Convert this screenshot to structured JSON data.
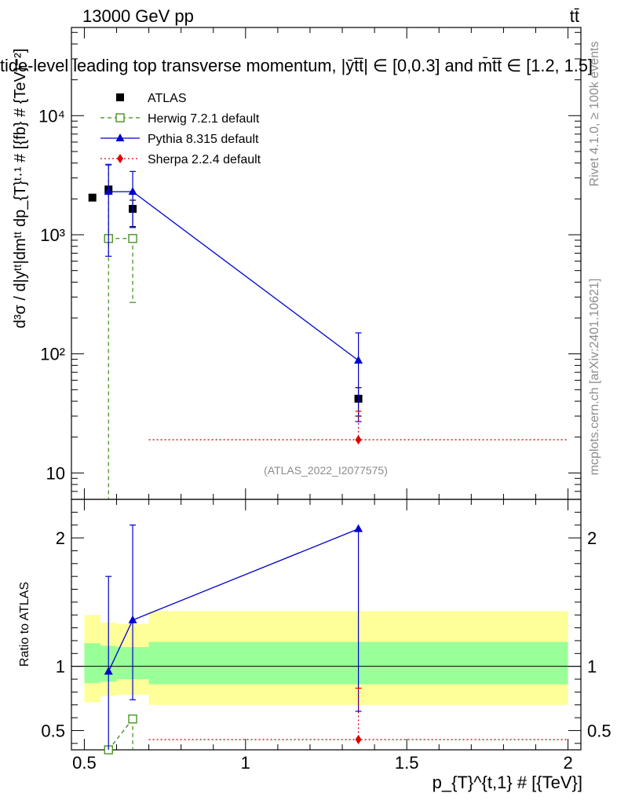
{
  "header": {
    "left": "13000 GeV pp",
    "right": "tt̄",
    "title": "tide-level leading top transverse momentum, |ȳt̄t̄| ∈ [0,0.3] and m̄t̄t̄ ∈ [1.2, 1.5]"
  },
  "side": {
    "rivet": "Rivet 4.1.0, ≥ 100k events",
    "mcplots": "mcplots.cern.ch [arXiv:2401.10621]"
  },
  "watermark": "(ATLAS_2022_I2077575)",
  "axes": {
    "ylabel_main": "d³σ / d|yᵗᵗ|dmᵗᵗ dp_{T}ᵗ·¹ # [{fb} # {TeV}⁻²]",
    "ylabel_ratio": "Ratio to ATLAS",
    "xlabel": "p_{T}^{t,1} # [{TeV}]"
  },
  "legend": [
    {
      "name": "ATLAS",
      "color": "#000000",
      "marker": "square-filled",
      "line": "none"
    },
    {
      "name": "Herwig 7.2.1 default",
      "color": "#3a8c12",
      "marker": "square-open",
      "line": "dashed"
    },
    {
      "name": "Pythia 8.315 default",
      "color": "#0000cc",
      "marker": "triangle",
      "line": "solid"
    },
    {
      "name": "Sherpa 2.2.4 default",
      "color": "#e00000",
      "marker": "diamond",
      "line": "dotted"
    }
  ],
  "chart_data": [
    {
      "type": "line",
      "panel": "main",
      "yscale": "log",
      "xlim": [
        0.46,
        2.04
      ],
      "ylim": [
        6,
        55000
      ],
      "x_ticks": [
        0.5,
        1,
        1.5,
        2
      ],
      "y_ticks": [
        {
          "value": 10,
          "label": "10"
        },
        {
          "value": 100,
          "label": "10²"
        },
        {
          "value": 1000,
          "label": "10³"
        },
        {
          "value": 10000,
          "label": "10⁴"
        }
      ],
      "series": [
        {
          "name": "ATLAS",
          "x": [
            0.525,
            0.575,
            0.65,
            1.35
          ],
          "y": [
            2050,
            2400,
            1650,
            42
          ],
          "yerr_lo": [
            null,
            null,
            480,
            12
          ],
          "yerr_hi": [
            null,
            null,
            300,
            10
          ]
        },
        {
          "name": "Herwig 7.2.1 default",
          "x": [
            0.575,
            0.65
          ],
          "y": [
            930,
            930
          ],
          "yerr_lo": [
            926,
            660
          ],
          "yerr_hi": [
            2900,
            0
          ]
        },
        {
          "name": "Pythia 8.315 default",
          "x": [
            0.575,
            0.65,
            1.35
          ],
          "y": [
            2300,
            2300,
            88
          ],
          "yerr_lo": [
            1640,
            1150,
            61
          ],
          "yerr_hi": [
            1600,
            1100,
            62
          ]
        },
        {
          "name": "Sherpa 2.2.4 default",
          "x": [
            1.35
          ],
          "y": [
            19
          ],
          "xrange": [
            0.7,
            2.0
          ],
          "yerr_lo": [
            0
          ],
          "yerr_hi": [
            14
          ]
        }
      ]
    },
    {
      "type": "line",
      "panel": "ratio",
      "yscale": "linear",
      "xlim": [
        0.46,
        2.04
      ],
      "ylim": [
        0.35,
        2.3
      ],
      "x_ticks": [
        0.5,
        1,
        1.5,
        2
      ],
      "y_ticks": [
        {
          "value": 0.5,
          "label": "0.5"
        },
        {
          "value": 1,
          "label": "1"
        },
        {
          "value": 2,
          "label": "2"
        }
      ],
      "x_tick_labels": [
        "0.5",
        "1",
        "1.5",
        "2"
      ],
      "bands": [
        {
          "name": "ATLAS total uncertainty",
          "color": "#ffff99",
          "segments": [
            {
              "x0": 0.5,
              "x1": 0.55,
              "lo": 0.72,
              "hi": 1.4
            },
            {
              "x0": 0.55,
              "x1": 0.6,
              "lo": 0.77,
              "hi": 1.34
            },
            {
              "x0": 0.6,
              "x1": 0.7,
              "lo": 0.78,
              "hi": 1.33
            },
            {
              "x0": 0.7,
              "x1": 2.0,
              "lo": 0.7,
              "hi": 1.43
            }
          ]
        },
        {
          "name": "ATLAS stat uncertainty",
          "color": "#99ff99",
          "segments": [
            {
              "x0": 0.5,
              "x1": 0.55,
              "lo": 0.87,
              "hi": 1.18
            },
            {
              "x0": 0.55,
              "x1": 0.6,
              "lo": 0.88,
              "hi": 1.16
            },
            {
              "x0": 0.6,
              "x1": 0.7,
              "lo": 0.9,
              "hi": 1.15
            },
            {
              "x0": 0.7,
              "x1": 2.0,
              "lo": 0.86,
              "hi": 1.19
            }
          ]
        }
      ],
      "series": [
        {
          "name": "Herwig 7.2.1 default",
          "x": [
            0.575,
            0.65
          ],
          "y": [
            0.35,
            0.59
          ],
          "yerr_lo": [
            0,
            0.24
          ],
          "yerr_hi": [
            0,
            0
          ]
        },
        {
          "name": "Pythia 8.315 default",
          "x": [
            0.575,
            0.65,
            1.35
          ],
          "y": [
            0.96,
            1.36,
            2.07
          ],
          "yerr_lo": [
            0.61,
            0.62,
            1.42
          ],
          "yerr_hi": [
            0.74,
            0.74,
            0.0
          ]
        },
        {
          "name": "Sherpa 2.2.4 default",
          "x": [
            1.35
          ],
          "y": [
            0.43
          ],
          "xrange": [
            0.7,
            2.0
          ],
          "yerr_lo": [
            0
          ],
          "yerr_hi": [
            0.4
          ]
        }
      ]
    }
  ]
}
